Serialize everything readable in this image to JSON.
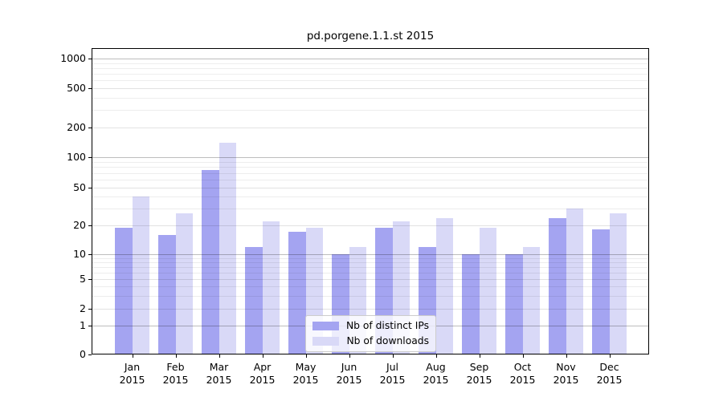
{
  "title": "pd.porgene.1.1.st 2015",
  "chart_data": {
    "type": "bar",
    "title": "pd.porgene.1.1.st 2015",
    "categories": [
      "Jan",
      "Feb",
      "Mar",
      "Apr",
      "May",
      "Jun",
      "Jul",
      "Aug",
      "Sep",
      "Oct",
      "Nov",
      "Dec"
    ],
    "category_year": "2015",
    "series": [
      {
        "name": "Nb of distinct IPs",
        "color": "#a4a4f1",
        "values": [
          19,
          16,
          75,
          12,
          17,
          10,
          19,
          12,
          10,
          10,
          24,
          18
        ]
      },
      {
        "name": "Nb of downloads",
        "color": "#d9d9f7",
        "values": [
          40,
          27,
          140,
          22,
          19,
          12,
          22,
          24,
          19,
          12,
          30,
          27
        ]
      }
    ],
    "yticks": [
      0,
      1,
      2,
      5,
      10,
      20,
      50,
      100,
      200,
      500,
      1000
    ],
    "ylim": [
      0,
      1000
    ],
    "yscale": "log-like with zero baseline",
    "grid": "horizontal, major and minor log gridlines",
    "legend_position": "lower center inside plot",
    "colors": {
      "grid_major": "#bdbdbd",
      "grid_submajor": "#e2e2e2",
      "grid_minor": "#ededed",
      "axis": "#000000",
      "background": "#ffffff"
    }
  }
}
